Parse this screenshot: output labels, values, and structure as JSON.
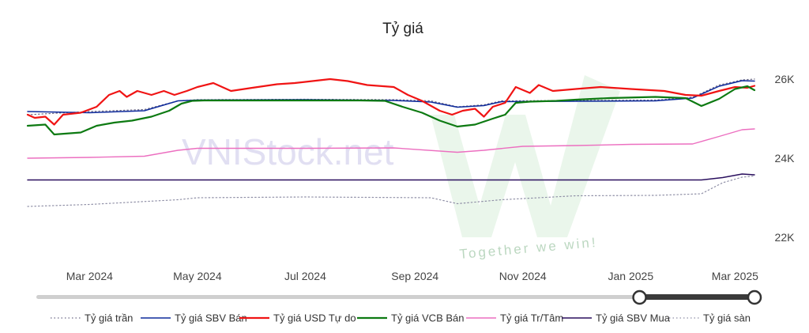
{
  "page": {
    "watermark_text": "VNIStock.net",
    "watermark_slogan": "Together we win!"
  },
  "chart_data": {
    "type": "line",
    "title": "Tỷ giá",
    "xlabel": "",
    "ylabel": "",
    "x_start": "2024-01-26",
    "x_end": "2025-03-12",
    "ylim": [
      21600,
      26400
    ],
    "y_ticks": [
      {
        "value": 22000,
        "label": "22K"
      },
      {
        "value": 24000,
        "label": "24K"
      },
      {
        "value": 26000,
        "label": "26K"
      }
    ],
    "x_ticks": [
      {
        "date": "2024-03-01",
        "label": "Mar 2024"
      },
      {
        "date": "2024-05-01",
        "label": "May 2024"
      },
      {
        "date": "2024-07-01",
        "label": "Jul 2024"
      },
      {
        "date": "2024-09-01",
        "label": "Sep 2024"
      },
      {
        "date": "2024-11-01",
        "label": "Nov 2024"
      },
      {
        "date": "2025-01-01",
        "label": "Jan 2025"
      },
      {
        "date": "2025-03-01",
        "label": "Mar 2025"
      }
    ],
    "grid": false,
    "legend_position": "bottom",
    "range_slider": {
      "start": 0.84,
      "end": 1.0
    },
    "series": [
      {
        "name": "Tỷ giá trần",
        "color": "#6d6a86",
        "dash": "dotted",
        "width": 1.2,
        "points": [
          [
            "2024-01-26",
            25100
          ],
          [
            "2024-03-01",
            25180
          ],
          [
            "2024-04-01",
            25230
          ],
          [
            "2024-04-20",
            25450
          ],
          [
            "2024-05-01",
            25480
          ],
          [
            "2024-07-01",
            25490
          ],
          [
            "2024-08-20",
            25480
          ],
          [
            "2024-09-10",
            25450
          ],
          [
            "2024-09-25",
            25300
          ],
          [
            "2024-10-10",
            25350
          ],
          [
            "2024-10-20",
            25450
          ],
          [
            "2024-12-01",
            25460
          ],
          [
            "2025-01-15",
            25470
          ],
          [
            "2025-02-05",
            25540
          ],
          [
            "2025-02-20",
            25850
          ],
          [
            "2025-03-05",
            25980
          ],
          [
            "2025-03-12",
            26000
          ]
        ]
      },
      {
        "name": "Tỷ giá SBV Bán",
        "color": "#0d2a9c",
        "dash": "solid",
        "width": 1.5,
        "points": [
          [
            "2024-01-26",
            25180
          ],
          [
            "2024-03-01",
            25150
          ],
          [
            "2024-04-01",
            25200
          ],
          [
            "2024-04-20",
            25450
          ],
          [
            "2024-05-01",
            25470
          ],
          [
            "2024-07-01",
            25480
          ],
          [
            "2024-08-20",
            25460
          ],
          [
            "2024-09-10",
            25420
          ],
          [
            "2024-09-25",
            25290
          ],
          [
            "2024-10-10",
            25330
          ],
          [
            "2024-10-20",
            25430
          ],
          [
            "2024-12-01",
            25440
          ],
          [
            "2025-01-15",
            25450
          ],
          [
            "2025-02-05",
            25520
          ],
          [
            "2025-02-20",
            25820
          ],
          [
            "2025-03-05",
            25960
          ],
          [
            "2025-03-12",
            25950
          ]
        ]
      },
      {
        "name": "Tỷ giá USD Tự do",
        "color": "#f01414",
        "dash": "solid",
        "width": 2.2,
        "points": [
          [
            "2024-01-26",
            25100
          ],
          [
            "2024-01-30",
            25020
          ],
          [
            "2024-02-05",
            25050
          ],
          [
            "2024-02-10",
            24850
          ],
          [
            "2024-02-15",
            25100
          ],
          [
            "2024-02-25",
            25150
          ],
          [
            "2024-03-05",
            25300
          ],
          [
            "2024-03-12",
            25600
          ],
          [
            "2024-03-18",
            25700
          ],
          [
            "2024-03-22",
            25550
          ],
          [
            "2024-03-28",
            25700
          ],
          [
            "2024-04-05",
            25600
          ],
          [
            "2024-04-12",
            25700
          ],
          [
            "2024-04-18",
            25600
          ],
          [
            "2024-04-25",
            25700
          ],
          [
            "2024-05-01",
            25800
          ],
          [
            "2024-05-10",
            25900
          ],
          [
            "2024-05-20",
            25700
          ],
          [
            "2024-06-01",
            25780
          ],
          [
            "2024-06-15",
            25870
          ],
          [
            "2024-06-25",
            25900
          ],
          [
            "2024-07-05",
            25950
          ],
          [
            "2024-07-15",
            26000
          ],
          [
            "2024-07-25",
            25950
          ],
          [
            "2024-08-05",
            25850
          ],
          [
            "2024-08-20",
            25800
          ],
          [
            "2024-08-28",
            25600
          ],
          [
            "2024-09-05",
            25450
          ],
          [
            "2024-09-15",
            25200
          ],
          [
            "2024-09-22",
            25100
          ],
          [
            "2024-09-28",
            25200
          ],
          [
            "2024-10-05",
            25250
          ],
          [
            "2024-10-10",
            25050
          ],
          [
            "2024-10-15",
            25300
          ],
          [
            "2024-10-22",
            25400
          ],
          [
            "2024-10-28",
            25800
          ],
          [
            "2024-11-05",
            25650
          ],
          [
            "2024-11-10",
            25850
          ],
          [
            "2024-11-18",
            25700
          ],
          [
            "2024-12-01",
            25750
          ],
          [
            "2024-12-15",
            25800
          ],
          [
            "2025-01-01",
            25750
          ],
          [
            "2025-01-20",
            25700
          ],
          [
            "2025-02-01",
            25600
          ],
          [
            "2025-02-10",
            25580
          ],
          [
            "2025-02-20",
            25700
          ],
          [
            "2025-03-01",
            25800
          ],
          [
            "2025-03-08",
            25780
          ],
          [
            "2025-03-12",
            25830
          ]
        ]
      },
      {
        "name": "Tỷ giá VCB Bán",
        "color": "#0d7a12",
        "dash": "solid",
        "width": 2.2,
        "points": [
          [
            "2024-01-26",
            24820
          ],
          [
            "2024-02-05",
            24850
          ],
          [
            "2024-02-10",
            24600
          ],
          [
            "2024-02-25",
            24650
          ],
          [
            "2024-03-05",
            24820
          ],
          [
            "2024-03-15",
            24900
          ],
          [
            "2024-03-25",
            24950
          ],
          [
            "2024-04-05",
            25050
          ],
          [
            "2024-04-15",
            25200
          ],
          [
            "2024-04-22",
            25380
          ],
          [
            "2024-04-28",
            25450
          ],
          [
            "2024-05-05",
            25460
          ],
          [
            "2024-06-01",
            25460
          ],
          [
            "2024-07-01",
            25460
          ],
          [
            "2024-08-01",
            25460
          ],
          [
            "2024-08-15",
            25450
          ],
          [
            "2024-08-25",
            25300
          ],
          [
            "2024-09-05",
            25150
          ],
          [
            "2024-09-15",
            24950
          ],
          [
            "2024-09-25",
            24800
          ],
          [
            "2024-10-05",
            24850
          ],
          [
            "2024-10-15",
            25000
          ],
          [
            "2024-10-22",
            25100
          ],
          [
            "2024-10-28",
            25400
          ],
          [
            "2024-11-05",
            25430
          ],
          [
            "2024-11-20",
            25450
          ],
          [
            "2024-12-01",
            25480
          ],
          [
            "2024-12-20",
            25520
          ],
          [
            "2025-01-15",
            25550
          ],
          [
            "2025-02-01",
            25520
          ],
          [
            "2025-02-10",
            25320
          ],
          [
            "2025-02-20",
            25500
          ],
          [
            "2025-03-01",
            25750
          ],
          [
            "2025-03-08",
            25820
          ],
          [
            "2025-03-12",
            25720
          ]
        ]
      },
      {
        "name": "Tỷ giá Tr/Tâm",
        "color": "#ec6fc0",
        "dash": "solid",
        "width": 1.4,
        "points": [
          [
            "2024-01-26",
            24000
          ],
          [
            "2024-03-01",
            24020
          ],
          [
            "2024-04-01",
            24050
          ],
          [
            "2024-04-20",
            24200
          ],
          [
            "2024-05-01",
            24250
          ],
          [
            "2024-07-01",
            24250
          ],
          [
            "2024-08-20",
            24260
          ],
          [
            "2024-09-25",
            24150
          ],
          [
            "2024-10-10",
            24200
          ],
          [
            "2024-11-01",
            24300
          ],
          [
            "2024-12-01",
            24320
          ],
          [
            "2025-01-01",
            24350
          ],
          [
            "2025-02-05",
            24360
          ],
          [
            "2025-02-20",
            24550
          ],
          [
            "2025-03-05",
            24720
          ],
          [
            "2025-03-12",
            24740
          ]
        ]
      },
      {
        "name": "Tỷ giá SBV Mua",
        "color": "#2a0f5e",
        "dash": "solid",
        "width": 1.5,
        "points": [
          [
            "2024-01-26",
            23450
          ],
          [
            "2024-04-01",
            23450
          ],
          [
            "2024-07-01",
            23450
          ],
          [
            "2024-10-01",
            23450
          ],
          [
            "2025-01-01",
            23450
          ],
          [
            "2025-02-10",
            23450
          ],
          [
            "2025-02-22",
            23510
          ],
          [
            "2025-03-05",
            23600
          ],
          [
            "2025-03-12",
            23580
          ]
        ]
      },
      {
        "name": "Tỷ giá sàn",
        "color": "#8f8fa6",
        "dash": "dotted",
        "width": 1.2,
        "points": [
          [
            "2024-01-26",
            22780
          ],
          [
            "2024-03-01",
            22830
          ],
          [
            "2024-04-20",
            22950
          ],
          [
            "2024-05-01",
            23000
          ],
          [
            "2024-07-01",
            23020
          ],
          [
            "2024-09-10",
            23000
          ],
          [
            "2024-09-25",
            22850
          ],
          [
            "2024-10-20",
            22950
          ],
          [
            "2024-12-01",
            23050
          ],
          [
            "2025-01-15",
            23060
          ],
          [
            "2025-02-10",
            23100
          ],
          [
            "2025-02-22",
            23380
          ],
          [
            "2025-03-05",
            23520
          ],
          [
            "2025-03-12",
            23550
          ]
        ]
      }
    ]
  }
}
